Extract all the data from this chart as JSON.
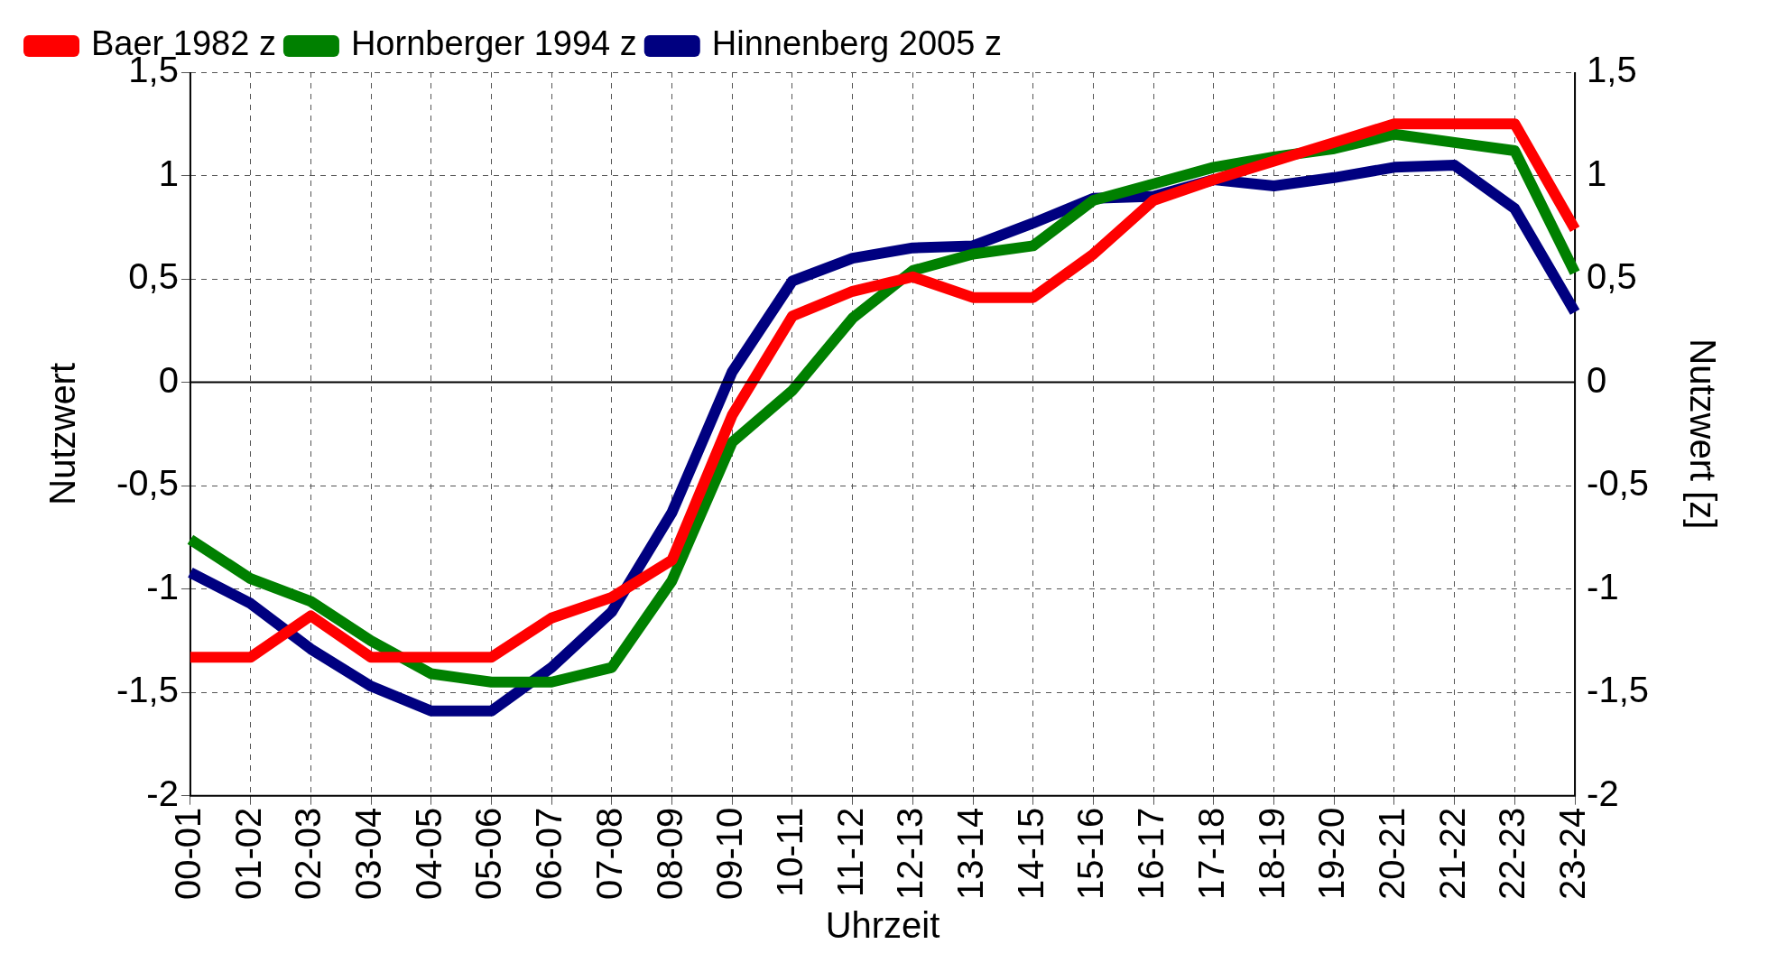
{
  "chart_data": {
    "type": "line",
    "xlabel": "Uhrzeit",
    "ylabel": "Nutzwert",
    "y2label": "Nutzwert [z]",
    "categories": [
      "00-01",
      "01-02",
      "02-03",
      "03-04",
      "04-05",
      "05-06",
      "06-07",
      "07-08",
      "08-09",
      "09-10",
      "10-11",
      "11-12",
      "12-13",
      "13-14",
      "14-15",
      "15-16",
      "16-17",
      "17-18",
      "18-19",
      "19-20",
      "20-21",
      "21-22",
      "22-23",
      "23-24"
    ],
    "series": [
      {
        "name": "Baer 1982 z",
        "color": "#ff0000",
        "values": [
          -1.33,
          -1.33,
          -1.13,
          -1.33,
          -1.33,
          -1.33,
          -1.14,
          -1.04,
          -0.86,
          -0.16,
          0.32,
          0.44,
          0.51,
          0.41,
          0.41,
          0.62,
          0.88,
          0.98,
          1.07,
          1.16,
          1.25,
          1.25,
          1.25,
          0.74
        ]
      },
      {
        "name": "Hornberger 1994 z",
        "color": "#008000",
        "values": [
          -0.76,
          -0.95,
          -1.06,
          -1.25,
          -1.41,
          -1.45,
          -1.45,
          -1.38,
          -0.96,
          -0.29,
          -0.04,
          0.31,
          0.54,
          0.62,
          0.66,
          0.88,
          0.96,
          1.04,
          1.09,
          1.13,
          1.2,
          1.16,
          1.12,
          0.53
        ]
      },
      {
        "name": "Hinnenberg 2005 z",
        "color": "#000080",
        "values": [
          -0.92,
          -1.07,
          -1.29,
          -1.47,
          -1.59,
          -1.59,
          -1.38,
          -1.11,
          -0.63,
          0.05,
          0.49,
          0.6,
          0.65,
          0.66,
          0.77,
          0.89,
          0.9,
          0.98,
          0.95,
          0.99,
          1.04,
          1.05,
          0.84,
          0.34
        ]
      }
    ],
    "ylim": [
      -2,
      1.5
    ],
    "yticks": [
      {
        "value": -2,
        "label": "-2"
      },
      {
        "value": -1.5,
        "label": "-1,5"
      },
      {
        "value": -1,
        "label": "-1"
      },
      {
        "value": -0.5,
        "label": "-0,5"
      },
      {
        "value": 0,
        "label": "0"
      },
      {
        "value": 0.5,
        "label": "0,5"
      },
      {
        "value": 1,
        "label": "1"
      },
      {
        "value": 1.5,
        "label": "1,5"
      }
    ],
    "y2lim": [
      -2,
      1.5
    ],
    "y2ticks": [
      {
        "value": -2,
        "label": "-2"
      },
      {
        "value": -1.5,
        "label": "-1,5"
      },
      {
        "value": -1,
        "label": "-1"
      },
      {
        "value": -0.5,
        "label": "-0,5"
      },
      {
        "value": 0,
        "label": "0"
      },
      {
        "value": 0.5,
        "label": "0,5"
      },
      {
        "value": 1,
        "label": "1"
      },
      {
        "value": 1.5,
        "label": "1,5"
      }
    ],
    "ref_lines": [
      {
        "axis": "y",
        "value": 0,
        "color": "#000000"
      }
    ],
    "grid": true,
    "legend": "top left",
    "marker": "none",
    "line_style": "solid"
  }
}
